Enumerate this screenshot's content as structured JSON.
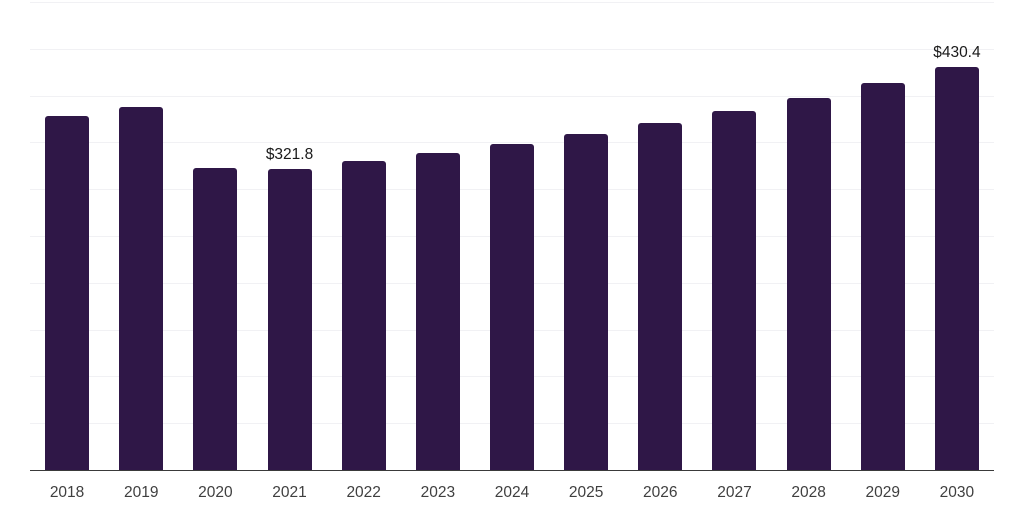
{
  "chart_data": {
    "type": "bar",
    "title": "",
    "xlabel": "",
    "ylabel": "",
    "categories": [
      "2018",
      "2019",
      "2020",
      "2021",
      "2022",
      "2023",
      "2024",
      "2025",
      "2026",
      "2027",
      "2028",
      "2029",
      "2030"
    ],
    "values": [
      378.5,
      388.0,
      322.4,
      321.8,
      330.1,
      338.6,
      348.0,
      359.5,
      371.1,
      383.6,
      397.0,
      413.0,
      430.4
    ],
    "data_labels": {
      "2021": "$321.8",
      "2030": "$430.4"
    },
    "value_prefix": "$",
    "ylim": [
      0,
      500
    ],
    "gridline_step": 50,
    "grid": "horizontal-only",
    "legend": "none",
    "y_axis_tick_labels_visible": false
  },
  "colors": {
    "background": "#ffffff",
    "bar": "#2f1747",
    "gridline": "#f1f1f4",
    "axis_line": "#3a3a3a",
    "tick_label": "#3f3f3f",
    "data_label": "#1a1a1a"
  }
}
